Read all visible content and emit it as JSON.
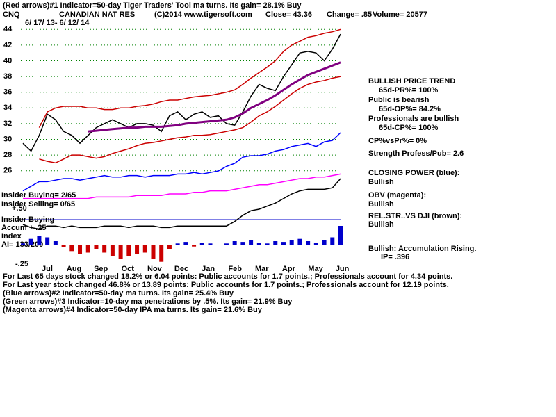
{
  "header_lines": [
    "(Red arrows)#1 Indicator=50-day Tiger Traders' Tool ma turns. Its gain= 28.1% Buy"
  ],
  "ticker": "CNQ",
  "company": "CANADIAN NAT RES",
  "copyright": "(C)2014 www.tigersoft.com",
  "close": "Close=  43.36",
  "change": "Change= .85",
  "volume": "Volume= 20577",
  "date_range": "6/ 17/ 13- 6/ 12/ 14",
  "right_notes": [
    "BULLISH PRICE TREND",
    "65d-PR%= 100%",
    "Public is bearish",
    "65d-OP%= 84.2%",
    "Professionals are bullish",
    "65d-CP%= 100%",
    "CP%vsPr%=  0%",
    "Strength Profess/Pub= 2.6",
    "CLOSING POWER (blue):",
    "Bullish",
    "OBV (magenta):",
    "Bullish",
    "REL.STR..VS DJI (brown):",
    "Bullish",
    "Bullish: Accumulation Rising.",
    "IP=  .396"
  ],
  "left_labels": [
    "Insider Buying= 2/65",
    "Insider Selling= 0/65",
    "+.50",
    "Insider Buying",
    "Accum + .25",
    "Index",
    "AI= 133/200",
    "-.25"
  ],
  "footer_lines": [
    "For Last 65 days stock changed  18.2% or  6.04 points:  Public accounts for  1.7 points.;  Professionals account for  4.34 points.",
    "For Last year stock changed  46.8% or  13.89 points:  Public accounts for  1.7 points.;  Professionals account for  12.19 points.",
    "(Blue arrows)#2 Indicator=50-day ma turns. Its gain= 25.4% Buy",
    "(Green arrows)#3 Indicator=10-day ma penetrations by .5%. Its gain= 21.9% Buy",
    "(Magenta arrows)#4 Indicator=50-day IPA ma turns. Its gain= 21.6% Buy"
  ],
  "chart_data": [
    {
      "type": "line",
      "ylim": [
        25,
        45
      ],
      "yticks": [
        26,
        28,
        30,
        32,
        34,
        36,
        38,
        40,
        42,
        44
      ],
      "grid": true,
      "x_labels": [
        "Jul",
        "Aug",
        "Sep",
        "Oct",
        "Nov",
        "Dec",
        "Jan",
        "Feb",
        "Mar",
        "Apr",
        "May",
        "Jun"
      ],
      "series": [
        {
          "color": "#000000",
          "values": [
            29.5,
            28.5,
            30.5,
            33.2,
            32.5,
            31,
            30.5,
            29.5,
            30.5,
            31.5,
            32,
            32.5,
            32,
            31.5,
            32,
            32,
            31.8,
            31,
            33,
            33.5,
            32.5,
            33.2,
            33.5,
            32.8,
            33,
            32,
            31.8,
            33.5,
            35.5,
            37,
            36.5,
            36.2,
            38,
            39.5,
            41,
            41.2,
            41,
            40,
            41.5,
            43.4
          ]
        },
        {
          "color": "#cc0000",
          "values": [
            null,
            null,
            31.5,
            33.5,
            34,
            34.2,
            34.2,
            34.2,
            34,
            34,
            33.8,
            33.8,
            34,
            34,
            34.2,
            34.3,
            34.5,
            34.8,
            35,
            35,
            35.2,
            35.4,
            35.5,
            35.6,
            35.8,
            36,
            36.3,
            37,
            37.8,
            38.5,
            39.2,
            40,
            41.2,
            42,
            42.5,
            43,
            43.2,
            43.5,
            43.7,
            44
          ]
        },
        {
          "color": "#cc0000",
          "values": [
            null,
            null,
            27.5,
            27.2,
            27,
            27.5,
            28,
            28,
            27.8,
            27.6,
            27.8,
            28.2,
            28.5,
            28.8,
            29.2,
            29.5,
            29.6,
            29.8,
            30,
            30.2,
            30.3,
            30.5,
            30.5,
            30.6,
            30.8,
            31,
            31.2,
            31.5,
            32.2,
            33,
            33.5,
            34.2,
            35,
            35.8,
            36.5,
            37,
            37.3,
            37.5,
            37.8,
            38
          ]
        },
        {
          "color": "#800080",
          "values": [
            null,
            null,
            null,
            null,
            null,
            null,
            null,
            null,
            31,
            31.1,
            31.2,
            31.3,
            31.4,
            31.5,
            31.5,
            31.6,
            31.6,
            31.6,
            31.7,
            31.8,
            32,
            32.1,
            32.2,
            32.3,
            32.4,
            32.5,
            32.8,
            33.3,
            34,
            34.5,
            35,
            35.6,
            36.3,
            37,
            37.6,
            38.2,
            38.6,
            39,
            39.4,
            39.8
          ]
        }
      ]
    },
    {
      "type": "line",
      "ylim": [
        0,
        100
      ],
      "series": [
        {
          "color": "#0000ff",
          "values": [
            57,
            60,
            63,
            63,
            64,
            65,
            65,
            64,
            65,
            66,
            67,
            66,
            66,
            67,
            67,
            66,
            67,
            67,
            67,
            68,
            68,
            69,
            68,
            69,
            70,
            73,
            75,
            79,
            80,
            80,
            81,
            83,
            84,
            86,
            87,
            88,
            86,
            89,
            90,
            95
          ]
        },
        {
          "color": "#ff00ff",
          "values": [
            52,
            52,
            52,
            52,
            52,
            52,
            52,
            52,
            52,
            53,
            53,
            53,
            53,
            53,
            54,
            54,
            54,
            54,
            55,
            55,
            55,
            56,
            56,
            57,
            57,
            57,
            58,
            59,
            60,
            61,
            61,
            62,
            63,
            64,
            65,
            65,
            66,
            66,
            67,
            68
          ]
        },
        {
          "color": "#000000",
          "values": [
            35,
            33,
            32,
            34,
            34,
            33,
            34,
            33,
            33,
            33,
            34,
            34,
            34,
            33,
            34,
            34,
            34,
            33,
            33,
            34,
            34,
            34,
            34,
            34,
            34,
            34,
            37,
            41,
            44,
            45,
            47,
            49,
            52,
            55,
            57,
            58,
            58,
            58,
            59,
            65
          ]
        }
      ]
    },
    {
      "type": "bar",
      "ylim": [
        -0.25,
        0.25
      ],
      "pos_color": "#0000cc",
      "neg_color": "#cc0000",
      "values": [
        0.02,
        0.08,
        0.12,
        0.1,
        0.05,
        -0.03,
        -0.08,
        -0.12,
        -0.1,
        -0.05,
        -0.1,
        -0.15,
        -0.18,
        -0.15,
        -0.12,
        -0.1,
        -0.18,
        -0.22,
        -0.05,
        0.02,
        0.04,
        -0.02,
        0.03,
        0.02,
        0,
        0.02,
        0.05,
        0.04,
        0.06,
        0.03,
        0.02,
        0.05,
        0.04,
        0.06,
        0.08,
        0.05,
        0.03,
        0.06,
        0.1,
        0.25
      ]
    }
  ]
}
